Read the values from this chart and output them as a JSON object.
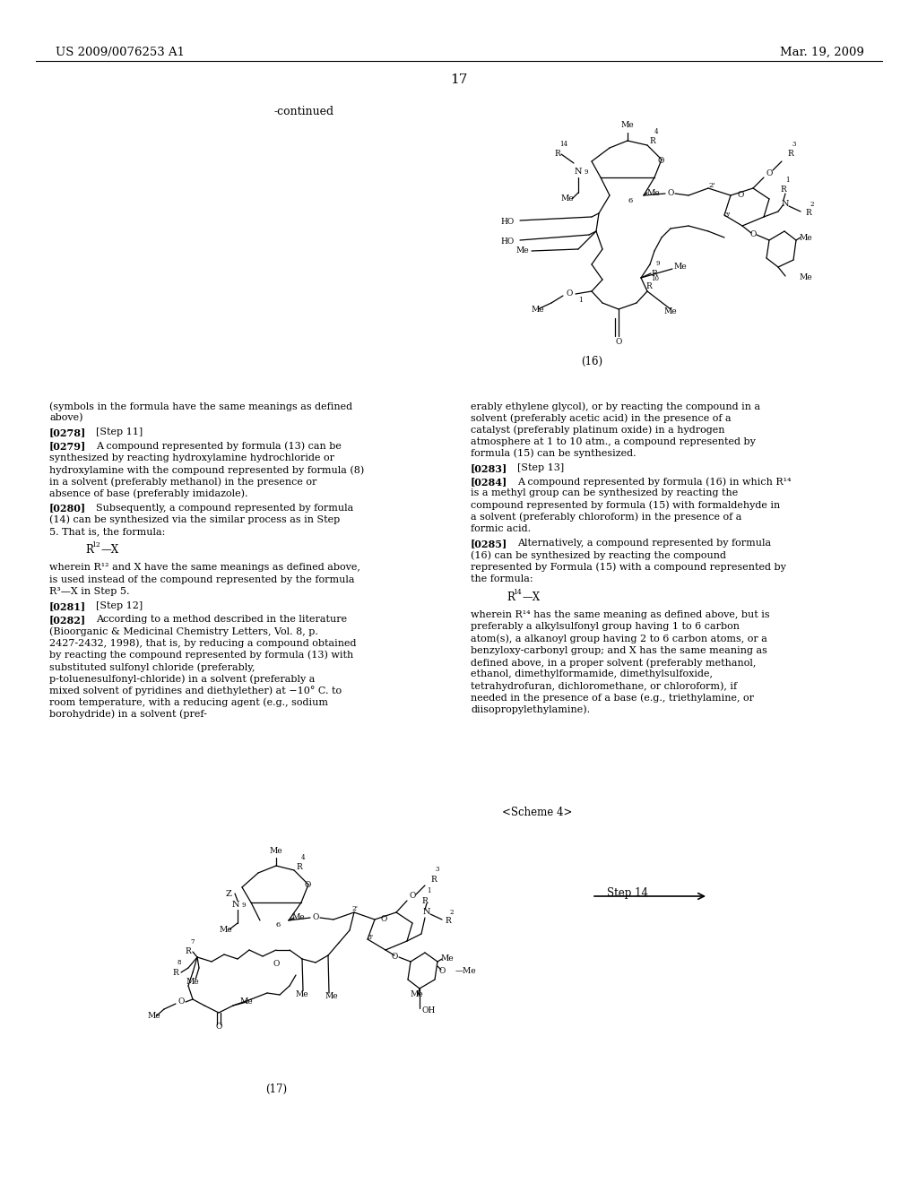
{
  "patent_number": "US 2009/0076253 A1",
  "patent_date": "Mar. 19, 2009",
  "page_number": "17",
  "continued_label": "-continued",
  "background_color": "#ffffff"
}
